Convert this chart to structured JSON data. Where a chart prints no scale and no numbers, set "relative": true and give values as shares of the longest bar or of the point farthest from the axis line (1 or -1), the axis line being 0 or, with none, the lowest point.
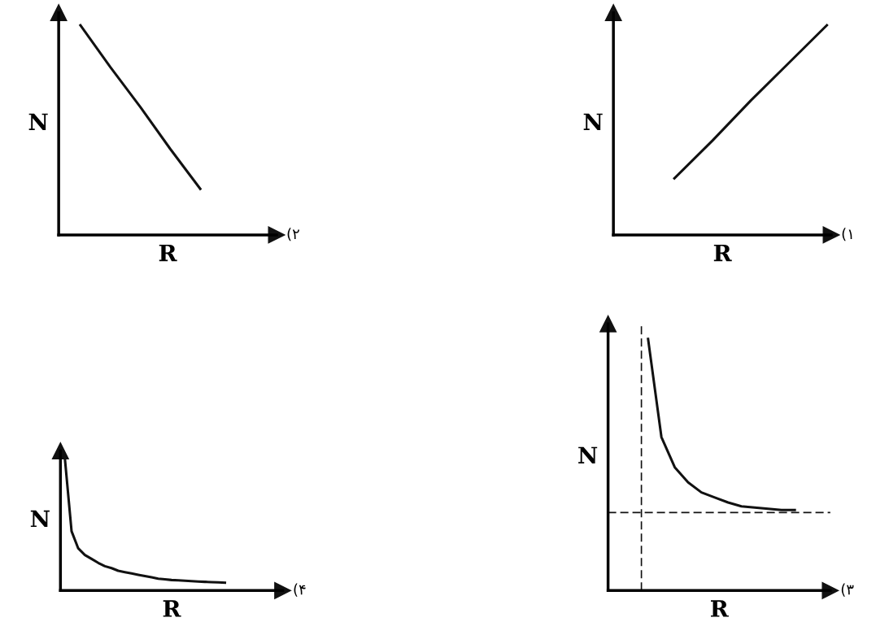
{
  "chart_data": [
    {
      "type": "line",
      "annotations": [
        "(۲"
      ],
      "xlabel": "R",
      "ylabel": "N",
      "relative": true,
      "categories": [
        null,
        null,
        null,
        null,
        null
      ],
      "series": [
        {
          "color": "#111111",
          "values": [
            1,
            0.8,
            0.61,
            0.41,
            0.22
          ]
        }
      ]
    },
    {
      "type": "line",
      "annotations": [
        "(۱"
      ],
      "xlabel": "R",
      "ylabel": "N",
      "relative": true,
      "categories": [
        null,
        null,
        null,
        null,
        null
      ],
      "series": [
        {
          "color": "#111111",
          "values": [
            0.27,
            0.45,
            0.64,
            0.82,
            1
          ]
        }
      ]
    },
    {
      "type": "line",
      "annotations": [
        "(۴"
      ],
      "xlabel": "R",
      "ylabel": "N",
      "relative": true,
      "categories": [
        null,
        null,
        null,
        null,
        null,
        null,
        null,
        null,
        null,
        null,
        null,
        null,
        null,
        null,
        null,
        null,
        null,
        null,
        null,
        null,
        null,
        null,
        null,
        null,
        null
      ],
      "series": [
        {
          "color": "#111111",
          "values": [
            1,
            0.45,
            0.32,
            0.27,
            0.24,
            0.21,
            0.185,
            0.17,
            0.15,
            0.14,
            0.13,
            0.12,
            0.11,
            0.1,
            0.09,
            0.085,
            0.08,
            0.077,
            0.074,
            0.071,
            0.068,
            0.066,
            0.064,
            0.062,
            0.06
          ]
        }
      ]
    },
    {
      "type": "line",
      "annotations": [
        "(۳"
      ],
      "xlabel": "R",
      "ylabel": "N",
      "relative": true,
      "categories": [
        null,
        null,
        null,
        null,
        null,
        null,
        null,
        null,
        null,
        null,
        null,
        null
      ],
      "series": [
        {
          "color": "#111111",
          "values": [
            1,
            0.61,
            0.49,
            0.43,
            0.39,
            0.37,
            0.35,
            0.335,
            0.33,
            0.325,
            0.32,
            0.32
          ]
        }
      ],
      "ref_lines": [
        {
          "axis": "y",
          "value": 0.31,
          "color": "#111111",
          "line_style": "dashed"
        }
      ]
    }
  ]
}
